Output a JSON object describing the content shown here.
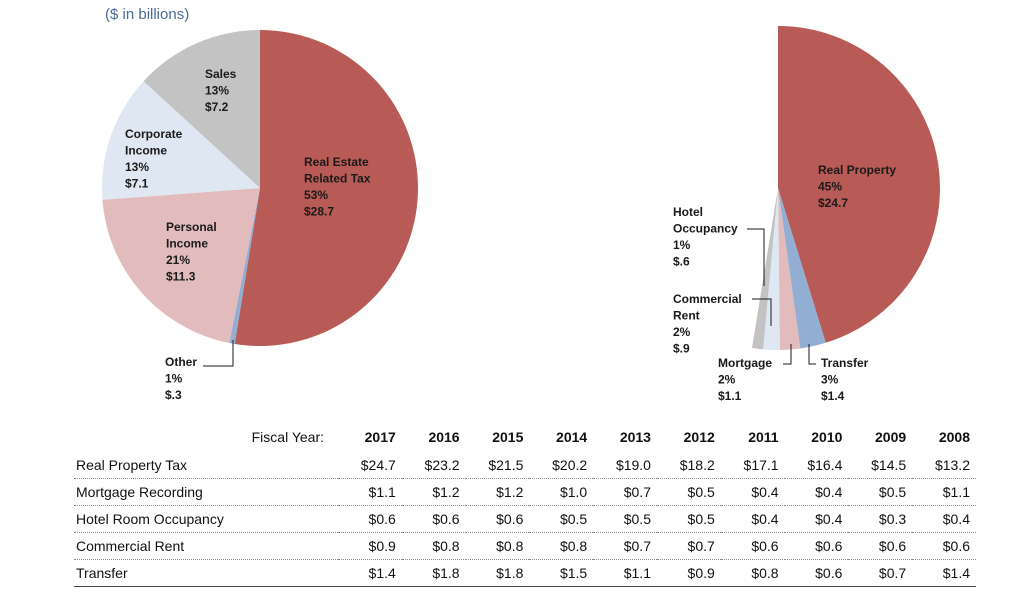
{
  "left_chart": {
    "subtitle": "($ in billions)"
  },
  "right_chart": {
    "subtitle": ""
  },
  "chart_data": [
    {
      "type": "pie",
      "slices": [
        {
          "label": [
            "Real Estate",
            "Related Tax"
          ],
          "percent_label": "53%",
          "value_label": "$28.7",
          "value": 28.7,
          "color": "#b85a55"
        },
        {
          "label": [
            "Other"
          ],
          "percent_label": "1%",
          "value_label": "$.3",
          "value": 0.3,
          "color": "#93aed3"
        },
        {
          "label": [
            "Personal",
            "Income"
          ],
          "percent_label": "21%",
          "value_label": "$11.3",
          "value": 11.3,
          "color": "#e2bcbc"
        },
        {
          "label": [
            "Corporate",
            "Income"
          ],
          "percent_label": "13%",
          "value_label": "$7.1",
          "value": 7.1,
          "color": "#dfe7f3"
        },
        {
          "label": [
            "Sales"
          ],
          "percent_label": "13%",
          "value_label": "$7.2",
          "value": 7.2,
          "color": "#c3c3c3"
        }
      ]
    },
    {
      "type": "pie",
      "slices": [
        {
          "label": [
            "Real Property"
          ],
          "percent_label": "45%",
          "value_label": "$24.7",
          "value": 24.7,
          "color": "#b85a55"
        },
        {
          "label": [
            "Transfer"
          ],
          "percent_label": "3%",
          "value_label": "$1.4",
          "value": 1.4,
          "color": "#93aed3"
        },
        {
          "label": [
            "Mortgage"
          ],
          "percent_label": "2%",
          "value_label": "$1.1",
          "value": 1.1,
          "color": "#e2bcbc"
        },
        {
          "label": [
            "Commercial",
            "Rent"
          ],
          "percent_label": "2%",
          "value_label": "$.9",
          "value": 0.9,
          "color": "#dfe7f3"
        },
        {
          "label": [
            "Hotel",
            "Occupancy"
          ],
          "percent_label": "1%",
          "value_label": "$.6",
          "value": 0.6,
          "color": "#c3c3c3"
        }
      ]
    },
    {
      "type": "table",
      "header_label": "Fiscal Year:",
      "columns": [
        "2017",
        "2016",
        "2015",
        "2014",
        "2013",
        "2012",
        "2011",
        "2010",
        "2009",
        "2008"
      ],
      "rows": [
        {
          "label": "Real Property Tax",
          "values": [
            "$24.7",
            "$23.2",
            "$21.5",
            "$20.2",
            "$19.0",
            "$18.2",
            "$17.1",
            "$16.4",
            "$14.5",
            "$13.2"
          ]
        },
        {
          "label": "Mortgage Recording",
          "values": [
            "$1.1",
            "$1.2",
            "$1.2",
            "$1.0",
            "$0.7",
            "$0.5",
            "$0.4",
            "$0.4",
            "$0.5",
            "$1.1"
          ]
        },
        {
          "label": "Hotel Room Occupancy",
          "values": [
            "$0.6",
            "$0.6",
            "$0.6",
            "$0.5",
            "$0.5",
            "$0.5",
            "$0.4",
            "$0.4",
            "$0.3",
            "$0.4"
          ]
        },
        {
          "label": "Commercial Rent",
          "values": [
            "$0.9",
            "$0.8",
            "$0.8",
            "$0.8",
            "$0.7",
            "$0.7",
            "$0.6",
            "$0.6",
            "$0.6",
            "$0.6"
          ]
        },
        {
          "label": "Transfer",
          "values": [
            "$1.4",
            "$1.8",
            "$1.8",
            "$1.5",
            "$1.1",
            "$0.9",
            "$0.8",
            "$0.6",
            "$0.7",
            "$1.4"
          ]
        }
      ]
    }
  ]
}
